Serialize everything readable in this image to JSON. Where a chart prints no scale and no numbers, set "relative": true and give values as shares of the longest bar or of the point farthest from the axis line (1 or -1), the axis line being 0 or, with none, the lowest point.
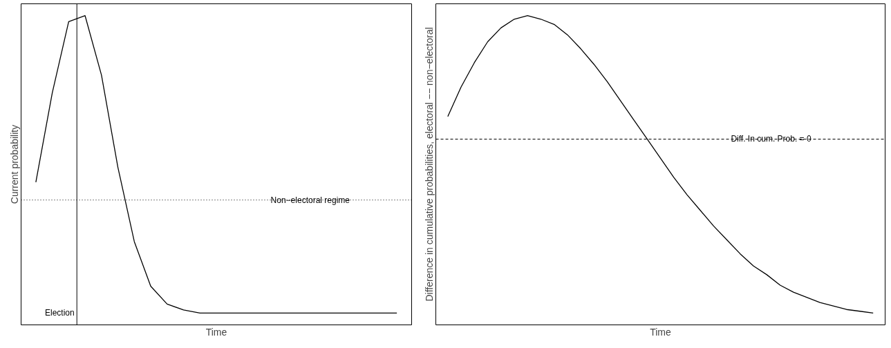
{
  "chart_data": [
    {
      "type": "line",
      "relative": true,
      "xlabel": "Time",
      "ylabel": "Current probability",
      "annotations": [
        "Election"
      ],
      "categories": [
        null,
        null,
        null,
        null,
        null,
        null,
        null,
        null,
        null,
        null,
        null,
        null,
        null,
        null,
        null,
        null,
        null,
        null,
        null,
        null,
        null,
        null,
        null
      ],
      "series": [
        {
          "color": "#000000",
          "values": [
            0.44,
            0.74,
            0.98,
            1,
            0.8,
            0.49,
            0.24,
            0.09,
            0.03,
            0.01,
            0,
            0,
            0,
            0,
            0,
            0,
            0,
            0,
            0,
            0,
            0,
            0,
            0
          ]
        }
      ],
      "ref_lines": [
        {
          "axis": "y",
          "value": 0.38,
          "label": "Non−electoral regime",
          "line_style": "dotted",
          "color": "#000000"
        }
      ]
    },
    {
      "type": "line",
      "relative": true,
      "xlabel": "Time",
      "ylabel": "Difference in cumulative probabilities, electoral −− non−electoral",
      "categories": [
        null,
        null,
        null,
        null,
        null,
        null,
        null,
        null,
        null,
        null,
        null,
        null,
        null,
        null,
        null,
        null,
        null,
        null,
        null,
        null,
        null,
        null,
        null,
        null,
        null,
        null,
        null,
        null,
        null,
        null,
        null,
        null,
        null
      ],
      "series": [
        {
          "color": "#000000",
          "values": [
            0.13,
            0.3,
            0.44,
            0.56,
            0.64,
            0.69,
            0.71,
            0.69,
            0.66,
            0.6,
            0.52,
            0.43,
            0.33,
            0.22,
            0.11,
            0,
            -0.11,
            -0.22,
            -0.32,
            -0.41,
            -0.5,
            -0.58,
            -0.66,
            -0.73,
            -0.78,
            -0.84,
            -0.88,
            -0.91,
            -0.94,
            -0.96,
            -0.98,
            -0.99,
            -1
          ]
        }
      ],
      "ref_lines": [
        {
          "axis": "y",
          "value": 0,
          "label": "Diff. In cum. Prob. = 0",
          "line_style": "dashed",
          "color": "#000000"
        }
      ]
    }
  ]
}
